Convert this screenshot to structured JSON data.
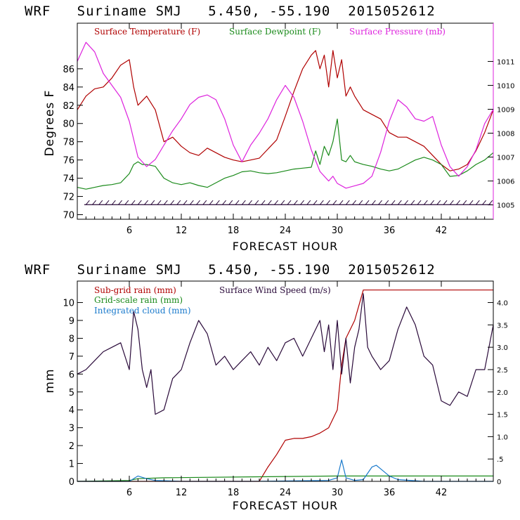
{
  "colors": {
    "temperature": "#b00000",
    "dewpoint": "#1a8a1a",
    "pressure": "#dd22dd",
    "wind": "#2a0a3a",
    "subgrid_rain": "#b00000",
    "gridscale_rain": "#1a8a1a",
    "cloud": "#1a7acc"
  },
  "chart_data": [
    {
      "type": "line",
      "header": "WRF   Suriname SMJ   5.450, -55.190  2015052612",
      "xlabel": "FORECAST HOUR",
      "ylabel": "Degrees F",
      "xlim": [
        0,
        48
      ],
      "xticks": [
        "6",
        "12",
        "18",
        "24",
        "30",
        "36",
        "42"
      ],
      "xtick_values": [
        6,
        12,
        18,
        24,
        30,
        36,
        42
      ],
      "ylim": [
        69.5,
        91
      ],
      "yticks": [
        "70",
        "72",
        "74",
        "76",
        "78",
        "80",
        "82",
        "84",
        "86"
      ],
      "ytick_values": [
        70,
        72,
        74,
        76,
        78,
        80,
        82,
        84,
        86
      ],
      "y2lim": [
        1004.4,
        1012.6
      ],
      "y2ticks": [
        "1005",
        "1006",
        "1007",
        "1008",
        "1009",
        "1010",
        "1011"
      ],
      "y2tick_values": [
        1005,
        1006,
        1007,
        1008,
        1009,
        1010,
        1011
      ],
      "legend": [
        "Surface Temperature (F)",
        "Surface Dewpoint (F)",
        "Surface Pressure (mb)"
      ],
      "series": [
        {
          "name": "Surface Temperature (F)",
          "axis": "left",
          "color_key": "temperature",
          "x": [
            0,
            1,
            2,
            3,
            4,
            5,
            6,
            6.5,
            7,
            7.5,
            8,
            9,
            10,
            11,
            12,
            13,
            14,
            15,
            16,
            17,
            18,
            19,
            20,
            21,
            22,
            23,
            24,
            25,
            26,
            27,
            27.5,
            28,
            28.5,
            29,
            29.5,
            30,
            30.5,
            31,
            31.5,
            32,
            33,
            34,
            35,
            36,
            37,
            38,
            39,
            40,
            41,
            42,
            43,
            44,
            45,
            46,
            47,
            48
          ],
          "values": [
            81.5,
            83,
            83.8,
            84,
            85,
            86.4,
            87,
            84,
            82,
            82.5,
            83,
            81.5,
            78,
            78.5,
            77.5,
            76.8,
            76.5,
            77.3,
            76.8,
            76.3,
            76,
            75.8,
            76,
            76.2,
            77.2,
            78.2,
            80.8,
            83.5,
            86,
            87.5,
            88,
            86,
            87.5,
            84,
            88,
            85,
            87,
            83,
            84,
            83,
            81.5,
            81,
            80.5,
            79,
            78.5,
            78.5,
            78,
            77.5,
            76.5,
            75.5,
            74.8,
            75,
            75.5,
            77,
            79,
            81.5
          ]
        },
        {
          "name": "Surface Dewpoint (F)",
          "axis": "left",
          "color_key": "dewpoint",
          "x": [
            0,
            1,
            2,
            3,
            4,
            5,
            6,
            6.5,
            7,
            7.5,
            8,
            9,
            10,
            11,
            12,
            13,
            14,
            15,
            16,
            17,
            18,
            19,
            20,
            21,
            22,
            23,
            24,
            25,
            26,
            27,
            27.5,
            28,
            28.5,
            29,
            29.5,
            30,
            30.5,
            31,
            31.5,
            32,
            33,
            34,
            35,
            36,
            37,
            38,
            39,
            40,
            41,
            42,
            43,
            44,
            45,
            46,
            47,
            48
          ],
          "values": [
            73,
            72.8,
            73,
            73.2,
            73.3,
            73.5,
            74.5,
            75.5,
            75.8,
            75.5,
            75.5,
            75.3,
            74,
            73.5,
            73.3,
            73.5,
            73.2,
            73,
            73.5,
            74,
            74.3,
            74.7,
            74.8,
            74.6,
            74.5,
            74.6,
            74.8,
            75,
            75.1,
            75.2,
            77,
            75.5,
            77.5,
            76.5,
            78,
            80.5,
            76,
            75.8,
            76.5,
            75.8,
            75.5,
            75.3,
            75,
            74.8,
            75,
            75.5,
            76,
            76.3,
            76,
            75.5,
            74.2,
            74.3,
            74.8,
            75.5,
            76,
            76.8
          ]
        },
        {
          "name": "Surface Pressure (mb)",
          "axis": "right",
          "color_key": "pressure",
          "x": [
            0,
            1,
            2,
            3,
            4,
            5,
            6,
            7,
            8,
            9,
            10,
            11,
            12,
            13,
            14,
            15,
            16,
            17,
            18,
            19,
            20,
            21,
            22,
            23,
            24,
            25,
            26,
            27,
            28,
            29,
            29.5,
            30,
            31,
            32,
            33,
            34,
            35,
            36,
            37,
            38,
            39,
            40,
            41,
            42,
            43,
            44,
            45,
            46,
            47,
            48
          ],
          "values": [
            1011,
            1011.8,
            1011.4,
            1010.5,
            1010,
            1009.5,
            1008.5,
            1007,
            1006.6,
            1006.9,
            1007.5,
            1008.1,
            1008.6,
            1009.2,
            1009.5,
            1009.6,
            1009.4,
            1008.6,
            1007.5,
            1006.8,
            1007.5,
            1008,
            1008.6,
            1009.4,
            1010,
            1009.5,
            1008.5,
            1007.3,
            1006.4,
            1006,
            1006.2,
            1005.9,
            1005.7,
            1005.8,
            1005.9,
            1006.2,
            1007.2,
            1008.5,
            1009.4,
            1009.1,
            1008.6,
            1008.5,
            1008.7,
            1007.5,
            1006.6,
            1006.2,
            1006.6,
            1007.3,
            1008.4,
            1009
          ]
        }
      ]
    },
    {
      "type": "line",
      "header": "WRF   Suriname SMJ   5.450, -55.190  2015052612",
      "xlabel": "FORECAST HOUR",
      "ylabel": "mm",
      "xlim": [
        0,
        48
      ],
      "xticks": [
        "6",
        "12",
        "18",
        "24",
        "30",
        "36",
        "42"
      ],
      "xtick_values": [
        6,
        12,
        18,
        24,
        30,
        36,
        42
      ],
      "ylim": [
        0,
        11.2
      ],
      "yticks": [
        "0",
        "1",
        "2",
        "3",
        "4",
        "5",
        "6",
        "7",
        "8",
        "9",
        "10"
      ],
      "ytick_values": [
        0,
        1,
        2,
        3,
        4,
        5,
        6,
        7,
        8,
        9,
        10
      ],
      "y2lim": [
        0,
        4.48
      ],
      "y2ticks": [
        "0",
        ".5",
        "1.0",
        "1.5",
        "2.0",
        "2.5",
        "3.0",
        "3.5",
        "4.0"
      ],
      "y2tick_values": [
        0,
        0.5,
        1,
        1.5,
        2,
        2.5,
        3,
        3.5,
        4
      ],
      "legend": [
        "Sub-grid rain (mm)",
        "Surface Wind Speed (m/s)",
        "Grid-scale rain (mm)",
        "Integrated cloud (mm)"
      ],
      "series": [
        {
          "name": "Sub-grid rain (mm)",
          "axis": "left",
          "color_key": "subgrid_rain",
          "x": [
            0,
            21,
            22,
            23,
            24,
            25,
            26,
            27,
            28,
            29,
            30,
            30.5,
            31,
            32,
            33,
            34,
            40,
            48
          ],
          "values": [
            0,
            0,
            0.8,
            1.5,
            2.3,
            2.4,
            2.4,
            2.5,
            2.7,
            3,
            4,
            6.5,
            8,
            9,
            10.7,
            10.7,
            10.7,
            10.7
          ]
        },
        {
          "name": "Grid-scale rain (mm)",
          "axis": "left",
          "color_key": "gridscale_rain",
          "x": [
            0,
            6,
            7,
            10,
            20,
            30,
            40,
            48
          ],
          "values": [
            0,
            0.05,
            0.15,
            0.2,
            0.25,
            0.3,
            0.3,
            0.3
          ]
        },
        {
          "name": "Integrated cloud (mm)",
          "axis": "left",
          "color_key": "cloud",
          "x": [
            0,
            5,
            6,
            7,
            8,
            9,
            12,
            20,
            29,
            30,
            30.5,
            31,
            32,
            33,
            34,
            34.5,
            35,
            36,
            37,
            40,
            48
          ],
          "values": [
            0,
            0,
            0,
            0.3,
            0.15,
            0.05,
            0,
            0,
            0.05,
            0.2,
            1.2,
            0.2,
            0.05,
            0.1,
            0.8,
            0.9,
            0.7,
            0.3,
            0.1,
            0,
            0
          ]
        },
        {
          "name": "Surface Wind Speed (m/s)",
          "axis": "right",
          "color_key": "wind",
          "x": [
            0,
            1,
            2,
            3,
            4,
            5,
            6,
            6.5,
            7,
            7.5,
            8,
            8.5,
            9,
            10,
            11,
            12,
            13,
            14,
            15,
            16,
            17,
            18,
            19,
            20,
            21,
            22,
            23,
            24,
            25,
            26,
            27,
            28,
            28.5,
            29,
            29.5,
            30,
            30.5,
            31,
            31.5,
            32,
            32.5,
            33,
            33.5,
            34,
            35,
            36,
            37,
            38,
            39,
            40,
            41,
            42,
            43,
            44,
            45,
            46,
            47,
            48
          ],
          "values": [
            2.4,
            2.5,
            2.7,
            2.9,
            3.0,
            3.1,
            2.5,
            3.8,
            3.4,
            2.5,
            2.1,
            2.5,
            1.5,
            1.6,
            2.3,
            2.5,
            3.1,
            3.6,
            3.3,
            2.6,
            2.8,
            2.5,
            2.7,
            2.9,
            2.6,
            3.0,
            2.7,
            3.1,
            3.2,
            2.8,
            3.2,
            3.6,
            2.9,
            3.5,
            2.5,
            3.6,
            2.4,
            3.2,
            2.2,
            3.0,
            3.4,
            4.2,
            3.0,
            2.8,
            2.5,
            2.7,
            3.4,
            3.9,
            3.5,
            2.8,
            2.6,
            1.8,
            1.7,
            2.0,
            1.9,
            2.5,
            2.5,
            3.5
          ]
        }
      ]
    }
  ]
}
